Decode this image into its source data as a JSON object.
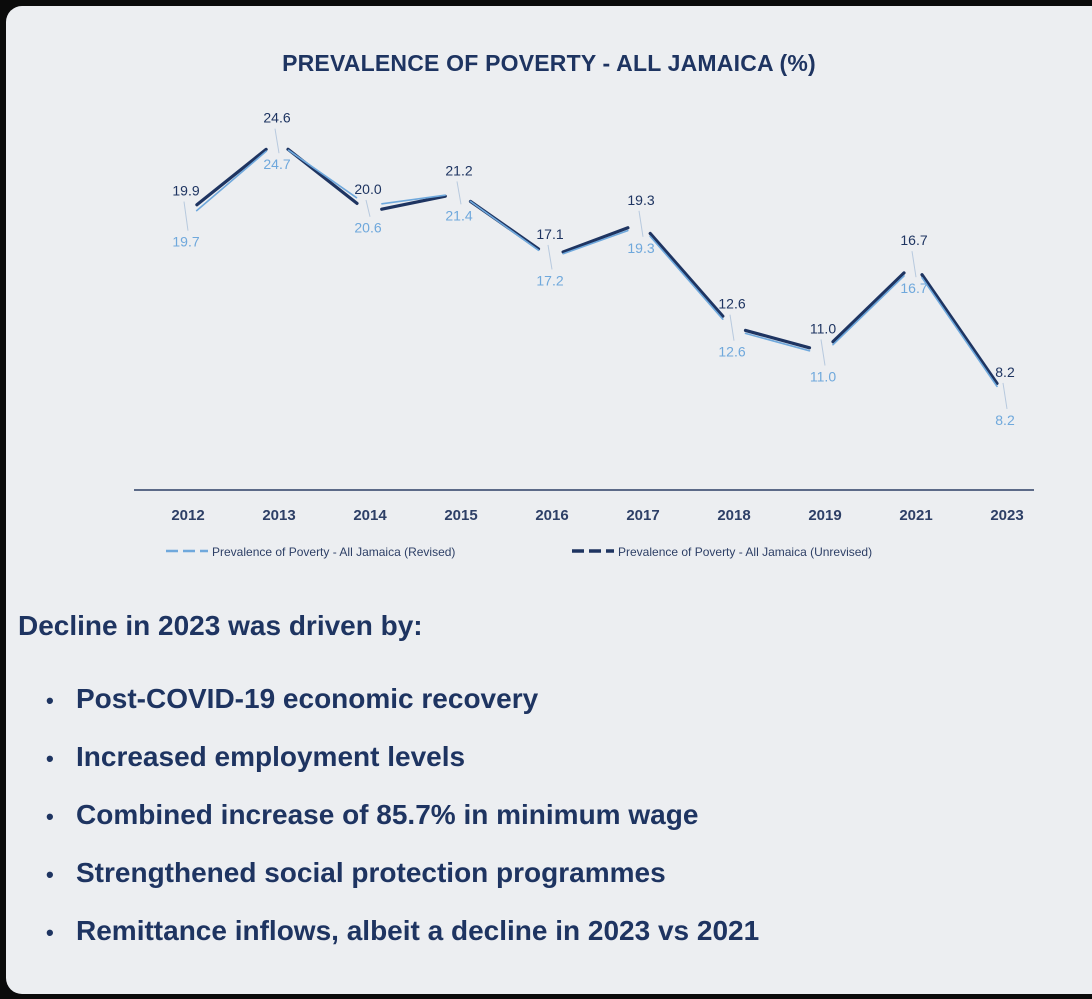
{
  "chart_data": {
    "type": "line",
    "title": "PREVALENCE OF POVERTY - ALL JAMAICA (%)",
    "categories": [
      "2012",
      "2013",
      "2014",
      "2015",
      "2016",
      "2017",
      "2018",
      "2019",
      "2021",
      "2023"
    ],
    "series": [
      {
        "name": "Prevalence of Poverty - All Jamaica (Revised)",
        "values": [
          19.7,
          24.7,
          20.6,
          21.4,
          17.2,
          19.3,
          12.6,
          11.0,
          16.7,
          8.2
        ],
        "color": "#6fa8dc"
      },
      {
        "name": "Prevalence of Poverty - All Jamaica (Unrevised)",
        "values": [
          19.9,
          24.6,
          20.0,
          21.2,
          17.1,
          19.3,
          12.6,
          11.0,
          16.7,
          8.2
        ],
        "color": "#1e3461"
      }
    ],
    "legend": "bottom",
    "grid": false
  },
  "caption": {
    "heading": "Decline in 2023 was driven by:",
    "bullet_char": "•",
    "items": [
      "Post-COVID-19 economic recovery",
      "Increased employment levels",
      "Combined increase of 85.7% in minimum wage",
      "Strengthened social protection programmes",
      "Remittance inflows, albeit a decline in 2023 vs 2021"
    ]
  },
  "colors": {
    "background": "#eceef1",
    "text": "#1e3461",
    "revised": "#6fa8dc",
    "unrevised": "#1e3461"
  }
}
